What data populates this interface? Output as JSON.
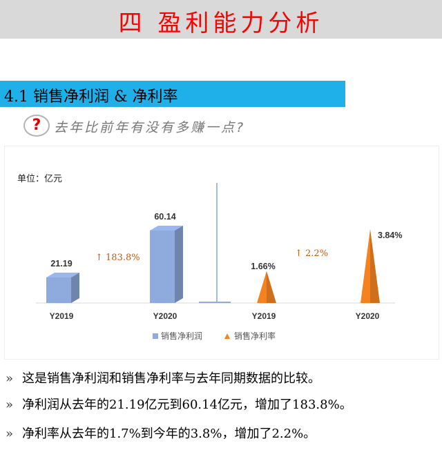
{
  "header": {
    "title": "四 盈利能力分析"
  },
  "section": {
    "title": "4.1 销售净利润 & 净利率",
    "question_mark": "?",
    "question": "去年比前年有没有多赚一点?"
  },
  "chart": {
    "unit_label": "单位：亿元"
  },
  "chart_data": {
    "type": "bar",
    "series": [
      {
        "name": "销售净利润",
        "shape": "column",
        "color": "#8faadc",
        "categories": [
          "Y2019",
          "Y2020"
        ],
        "values": [
          21.19,
          60.14
        ],
        "labels": [
          "21.19",
          "60.14"
        ],
        "growth_label": "↑ 183.8%"
      },
      {
        "name": "销售净利率",
        "shape": "cone",
        "color": "#f58220",
        "categories": [
          "Y2019",
          "Y2020"
        ],
        "values": [
          1.66,
          3.84
        ],
        "labels": [
          "1.66%",
          "3.84%"
        ],
        "growth_label": "↑ 2.2%"
      }
    ],
    "legend_position": "bottom",
    "grid": false
  },
  "bullets": [
    {
      "mark": "»",
      "text": "这是销售净利润和销售净利率与去年同期数据的比较。"
    },
    {
      "mark": "»",
      "text": "净利润从去年的21.19亿元到60.14亿元，增加了183.8%。"
    },
    {
      "mark": "»",
      "text": "净利率从去年的1.7%到今年的3.8%，增加了2.2%。"
    }
  ]
}
